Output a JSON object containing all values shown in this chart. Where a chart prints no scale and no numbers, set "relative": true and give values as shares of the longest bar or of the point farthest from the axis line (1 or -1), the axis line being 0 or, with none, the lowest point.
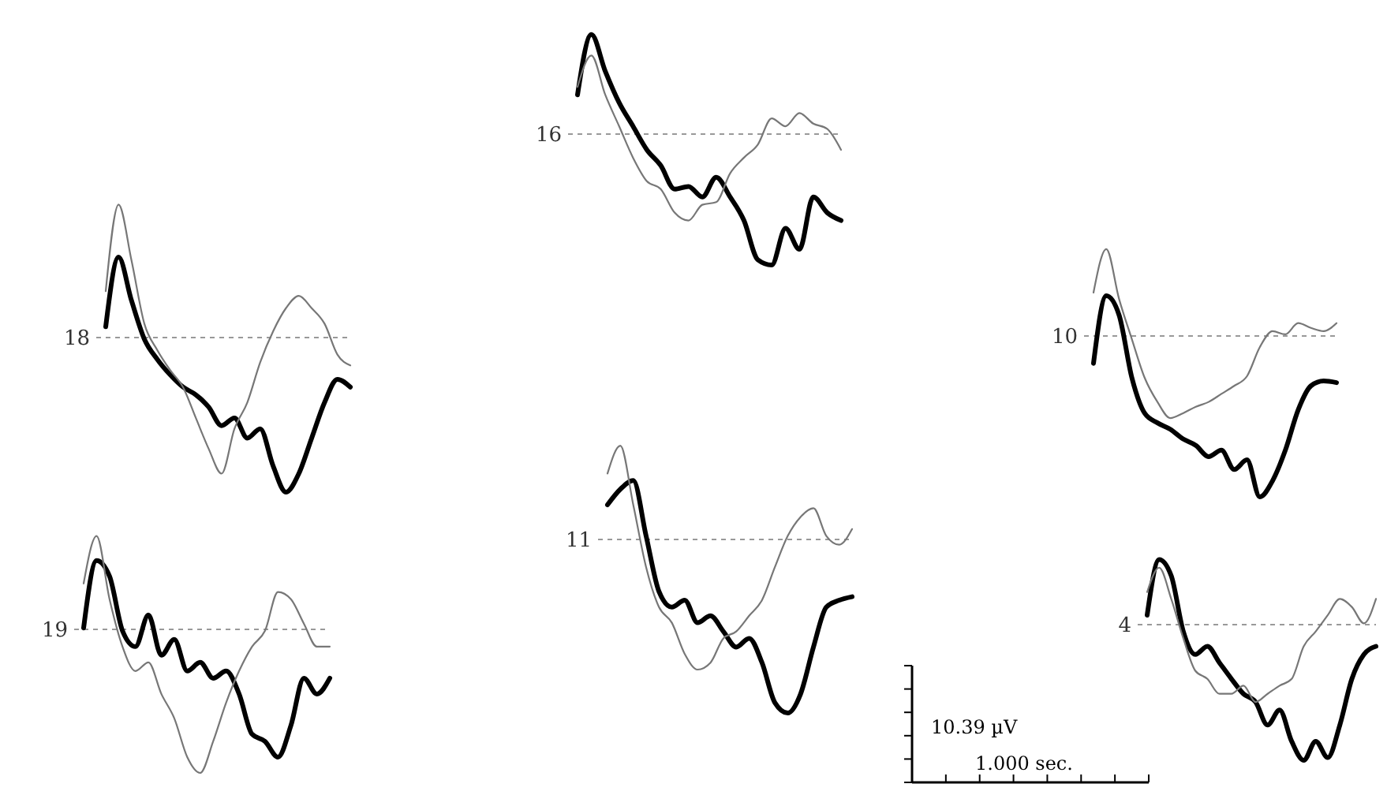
{
  "chart_data": [
    {
      "type": "line",
      "title": "16",
      "relative": true,
      "ref_lines": [
        {
          "axis": "y",
          "value": 0,
          "color": "#999999",
          "line_style": "dashed"
        }
      ],
      "categories": [
        null,
        null,
        null,
        null,
        null,
        null,
        null,
        null,
        null,
        null,
        null,
        null,
        null,
        null,
        null,
        null,
        null,
        null,
        null,
        null
      ],
      "series": [
        {
          "color": "#000000",
          "values": [
            0.3,
            0.76,
            0.48,
            0.24,
            0.06,
            -0.12,
            -0.24,
            -0.42,
            -0.4,
            -0.48,
            -0.33,
            -0.48,
            -0.66,
            -0.96,
            -1,
            -0.72,
            -0.88,
            -0.48,
            -0.6,
            -0.66
          ]
        },
        {
          "color": "#777777",
          "values": [
            0.36,
            0.6,
            0.3,
            0.06,
            -0.18,
            -0.36,
            -0.42,
            -0.6,
            -0.66,
            -0.54,
            -0.52,
            -0.3,
            -0.18,
            -0.08,
            0.12,
            0.06,
            0.16,
            0.08,
            0.04,
            -0.12
          ]
        }
      ]
    },
    {
      "type": "line",
      "title": "18",
      "relative": true,
      "ref_lines": [
        {
          "axis": "y",
          "value": 0,
          "color": "#999999",
          "line_style": "dashed"
        }
      ],
      "categories": [
        null,
        null,
        null,
        null,
        null,
        null,
        null,
        null,
        null,
        null,
        null,
        null,
        null,
        null,
        null,
        null,
        null,
        null,
        null,
        null
      ],
      "series": [
        {
          "color": "#000000",
          "values": [
            0.07,
            0.52,
            0.24,
            -0.01,
            -0.14,
            -0.24,
            -0.32,
            -0.37,
            -0.45,
            -0.57,
            -0.52,
            -0.65,
            -0.59,
            -0.83,
            -1,
            -0.88,
            -0.65,
            -0.42,
            -0.27,
            -0.32
          ]
        },
        {
          "color": "#777777",
          "values": [
            0.3,
            0.86,
            0.5,
            0.09,
            -0.08,
            -0.21,
            -0.32,
            -0.52,
            -0.72,
            -0.88,
            -0.59,
            -0.42,
            -0.16,
            0.04,
            0.19,
            0.27,
            0.19,
            0.09,
            -0.11,
            -0.18
          ]
        }
      ]
    },
    {
      "type": "line",
      "title": "10",
      "relative": true,
      "ref_lines": [
        {
          "axis": "y",
          "value": 0,
          "color": "#999999",
          "line_style": "dashed"
        }
      ],
      "categories": [
        null,
        null,
        null,
        null,
        null,
        null,
        null,
        null,
        null,
        null,
        null,
        null,
        null,
        null,
        null,
        null,
        null,
        null,
        null,
        null
      ],
      "series": [
        {
          "color": "#000000",
          "values": [
            -0.17,
            0.25,
            0.13,
            -0.26,
            -0.48,
            -0.54,
            -0.58,
            -0.64,
            -0.68,
            -0.75,
            -0.71,
            -0.83,
            -0.77,
            -1,
            -0.9,
            -0.71,
            -0.46,
            -0.31,
            -0.28,
            -0.29
          ]
        },
        {
          "color": "#777777",
          "values": [
            0.27,
            0.54,
            0.23,
            -0.02,
            -0.26,
            -0.41,
            -0.51,
            -0.48,
            -0.44,
            -0.41,
            -0.36,
            -0.31,
            -0.25,
            -0.07,
            0.03,
            0.01,
            0.08,
            0.05,
            0.03,
            0.08
          ]
        }
      ]
    },
    {
      "type": "line",
      "title": "11",
      "relative": true,
      "ref_lines": [
        {
          "axis": "y",
          "value": 0,
          "color": "#999999",
          "line_style": "dashed"
        }
      ],
      "categories": [
        null,
        null,
        null,
        null,
        null,
        null,
        null,
        null,
        null,
        null,
        null,
        null,
        null,
        null,
        null,
        null,
        null,
        null,
        null,
        null
      ],
      "series": [
        {
          "color": "#000000",
          "values": [
            0.2,
            0.29,
            0.34,
            0.02,
            -0.3,
            -0.39,
            -0.35,
            -0.48,
            -0.44,
            -0.53,
            -0.62,
            -0.57,
            -0.71,
            -0.94,
            -1,
            -0.89,
            -0.62,
            -0.39,
            -0.35,
            -0.33
          ]
        },
        {
          "color": "#777777",
          "values": [
            0.38,
            0.54,
            0.2,
            -0.16,
            -0.39,
            -0.48,
            -0.66,
            -0.75,
            -0.71,
            -0.57,
            -0.53,
            -0.44,
            -0.35,
            -0.16,
            0.02,
            0.13,
            0.18,
            0.02,
            -0.03,
            0.06
          ]
        }
      ]
    },
    {
      "type": "line",
      "title": "19",
      "relative": true,
      "ref_lines": [
        {
          "axis": "y",
          "value": 0,
          "color": "#999999",
          "line_style": "dashed"
        }
      ],
      "categories": [
        null,
        null,
        null,
        null,
        null,
        null,
        null,
        null,
        null,
        null,
        null,
        null,
        null,
        null,
        null,
        null,
        null,
        null,
        null,
        null
      ],
      "series": [
        {
          "color": "#000000",
          "values": [
            0.01,
            0.48,
            0.37,
            -0.01,
            -0.12,
            0.1,
            -0.18,
            -0.07,
            -0.29,
            -0.23,
            -0.34,
            -0.29,
            -0.45,
            -0.73,
            -0.78,
            -0.89,
            -0.67,
            -0.34,
            -0.45,
            -0.34
          ]
        },
        {
          "color": "#777777",
          "values": [
            0.32,
            0.65,
            0.21,
            -0.12,
            -0.29,
            -0.23,
            -0.45,
            -0.62,
            -0.89,
            -1,
            -0.78,
            -0.51,
            -0.29,
            -0.12,
            -0.01,
            0.26,
            0.21,
            0.04,
            -0.12,
            -0.12
          ]
        }
      ]
    },
    {
      "type": "line",
      "title": "4",
      "relative": true,
      "ref_lines": [
        {
          "axis": "y",
          "value": 0,
          "color": "#999999",
          "line_style": "dashed"
        }
      ],
      "categories": [
        null,
        null,
        null,
        null,
        null,
        null,
        null,
        null,
        null,
        null,
        null,
        null,
        null,
        null,
        null,
        null,
        null,
        null,
        null,
        null
      ],
      "series": [
        {
          "color": "#000000",
          "values": [
            0.07,
            0.48,
            0.36,
            -0.05,
            -0.22,
            -0.16,
            -0.28,
            -0.4,
            -0.51,
            -0.57,
            -0.74,
            -0.63,
            -0.86,
            -1,
            -0.86,
            -0.98,
            -0.74,
            -0.4,
            -0.22,
            -0.16
          ]
        },
        {
          "color": "#777777",
          "values": [
            0.24,
            0.42,
            0.19,
            -0.1,
            -0.34,
            -0.4,
            -0.51,
            -0.51,
            -0.45,
            -0.57,
            -0.51,
            -0.45,
            -0.4,
            -0.16,
            -0.05,
            0.07,
            0.19,
            0.13,
            0.01,
            0.19
          ]
        }
      ]
    },
    {
      "type": "other",
      "annotations": [
        "10.39 µV",
        "1.000 sec."
      ]
    }
  ]
}
